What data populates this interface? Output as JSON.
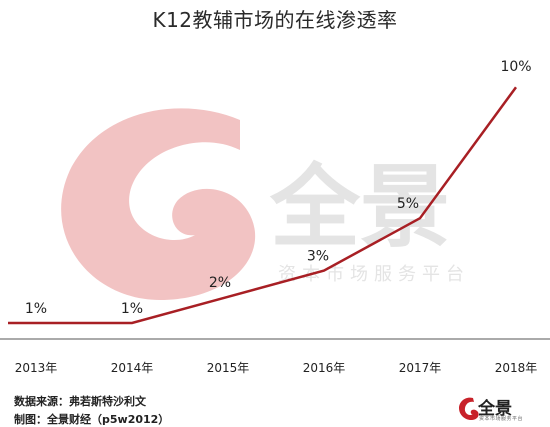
{
  "chart_data": {
    "type": "line",
    "title": "K12教辅市场的在线渗透率",
    "categories": [
      "2013年",
      "2014年",
      "2015年",
      "2016年",
      "2017年",
      "2018年"
    ],
    "series": [
      {
        "values": [
          1,
          1,
          2,
          3,
          5,
          10
        ],
        "data_labels": [
          "1%",
          "1%",
          "2%",
          "3%",
          "5%",
          "10%"
        ]
      }
    ],
    "xlabel": "",
    "ylabel": "",
    "ylim": [
      0,
      10
    ],
    "grid": false,
    "legend": "none",
    "colors": {
      "line": "#a81f24",
      "axis": "#555555",
      "watermark": "#f2c3c3"
    }
  },
  "watermark": {
    "brand": "全景",
    "tagline": "资本市场服务平台"
  },
  "footer": {
    "source": "数据来源：弗若斯特沙利文",
    "maker": "制图：全景财经（p5w2012）",
    "logo_text": "全景",
    "logo_sub": "资本市场服务平台"
  }
}
